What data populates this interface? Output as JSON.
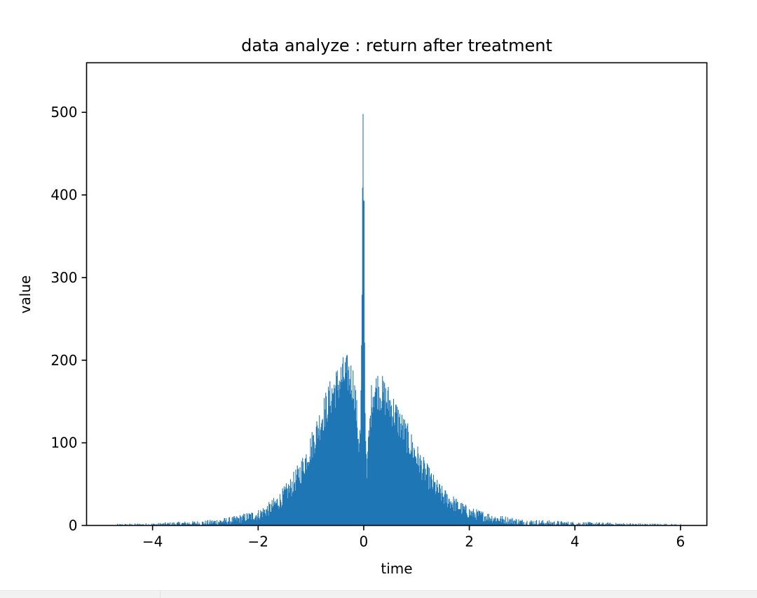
{
  "chart_data": {
    "type": "histogram",
    "title": "data analyze : return after treatment",
    "xlabel": "time",
    "ylabel": "value",
    "xlim": [
      -5.25,
      6.5
    ],
    "ylim": [
      0,
      560
    ],
    "xticks": [
      {
        "value": -4,
        "label": "−4"
      },
      {
        "value": -2,
        "label": "−2"
      },
      {
        "value": 0,
        "label": "0"
      },
      {
        "value": 2,
        "label": "2"
      },
      {
        "value": 4,
        "label": "4"
      },
      {
        "value": 6,
        "label": "6"
      }
    ],
    "yticks": [
      {
        "value": 0,
        "label": "0"
      },
      {
        "value": 100,
        "label": "100"
      },
      {
        "value": 200,
        "label": "200"
      },
      {
        "value": 300,
        "label": "300"
      },
      {
        "value": 400,
        "label": "400"
      },
      {
        "value": 500,
        "label": "500"
      }
    ],
    "color": "#1f77b4",
    "grid": false,
    "legend": "none",
    "data_range": [
      -4.7,
      6.0
    ],
    "envelope": [
      {
        "x": -4.7,
        "y": 0
      },
      {
        "x": -4.0,
        "y": 1
      },
      {
        "x": -3.5,
        "y": 2
      },
      {
        "x": -3.0,
        "y": 3
      },
      {
        "x": -2.5,
        "y": 6
      },
      {
        "x": -2.0,
        "y": 13
      },
      {
        "x": -1.8,
        "y": 20
      },
      {
        "x": -1.6,
        "y": 30
      },
      {
        "x": -1.4,
        "y": 45
      },
      {
        "x": -1.2,
        "y": 65
      },
      {
        "x": -1.0,
        "y": 95
      },
      {
        "x": -0.8,
        "y": 130
      },
      {
        "x": -0.6,
        "y": 160
      },
      {
        "x": -0.4,
        "y": 180
      },
      {
        "x": -0.3,
        "y": 183
      },
      {
        "x": -0.2,
        "y": 170
      },
      {
        "x": -0.15,
        "y": 140
      },
      {
        "x": -0.1,
        "y": 100
      },
      {
        "x": -0.07,
        "y": 110
      },
      {
        "x": -0.04,
        "y": 300
      },
      {
        "x": -0.02,
        "y": 530
      },
      {
        "x": 0.0,
        "y": 420
      },
      {
        "x": 0.02,
        "y": 150
      },
      {
        "x": 0.05,
        "y": 75
      },
      {
        "x": 0.1,
        "y": 110
      },
      {
        "x": 0.15,
        "y": 160
      },
      {
        "x": 0.25,
        "y": 165
      },
      {
        "x": 0.35,
        "y": 158
      },
      {
        "x": 0.5,
        "y": 145
      },
      {
        "x": 0.7,
        "y": 120
      },
      {
        "x": 0.9,
        "y": 95
      },
      {
        "x": 1.1,
        "y": 70
      },
      {
        "x": 1.3,
        "y": 50
      },
      {
        "x": 1.5,
        "y": 35
      },
      {
        "x": 1.8,
        "y": 22
      },
      {
        "x": 2.0,
        "y": 15
      },
      {
        "x": 2.5,
        "y": 8
      },
      {
        "x": 3.0,
        "y": 4
      },
      {
        "x": 3.5,
        "y": 3
      },
      {
        "x": 4.0,
        "y": 2
      },
      {
        "x": 5.0,
        "y": 1
      },
      {
        "x": 6.0,
        "y": 0
      }
    ]
  }
}
